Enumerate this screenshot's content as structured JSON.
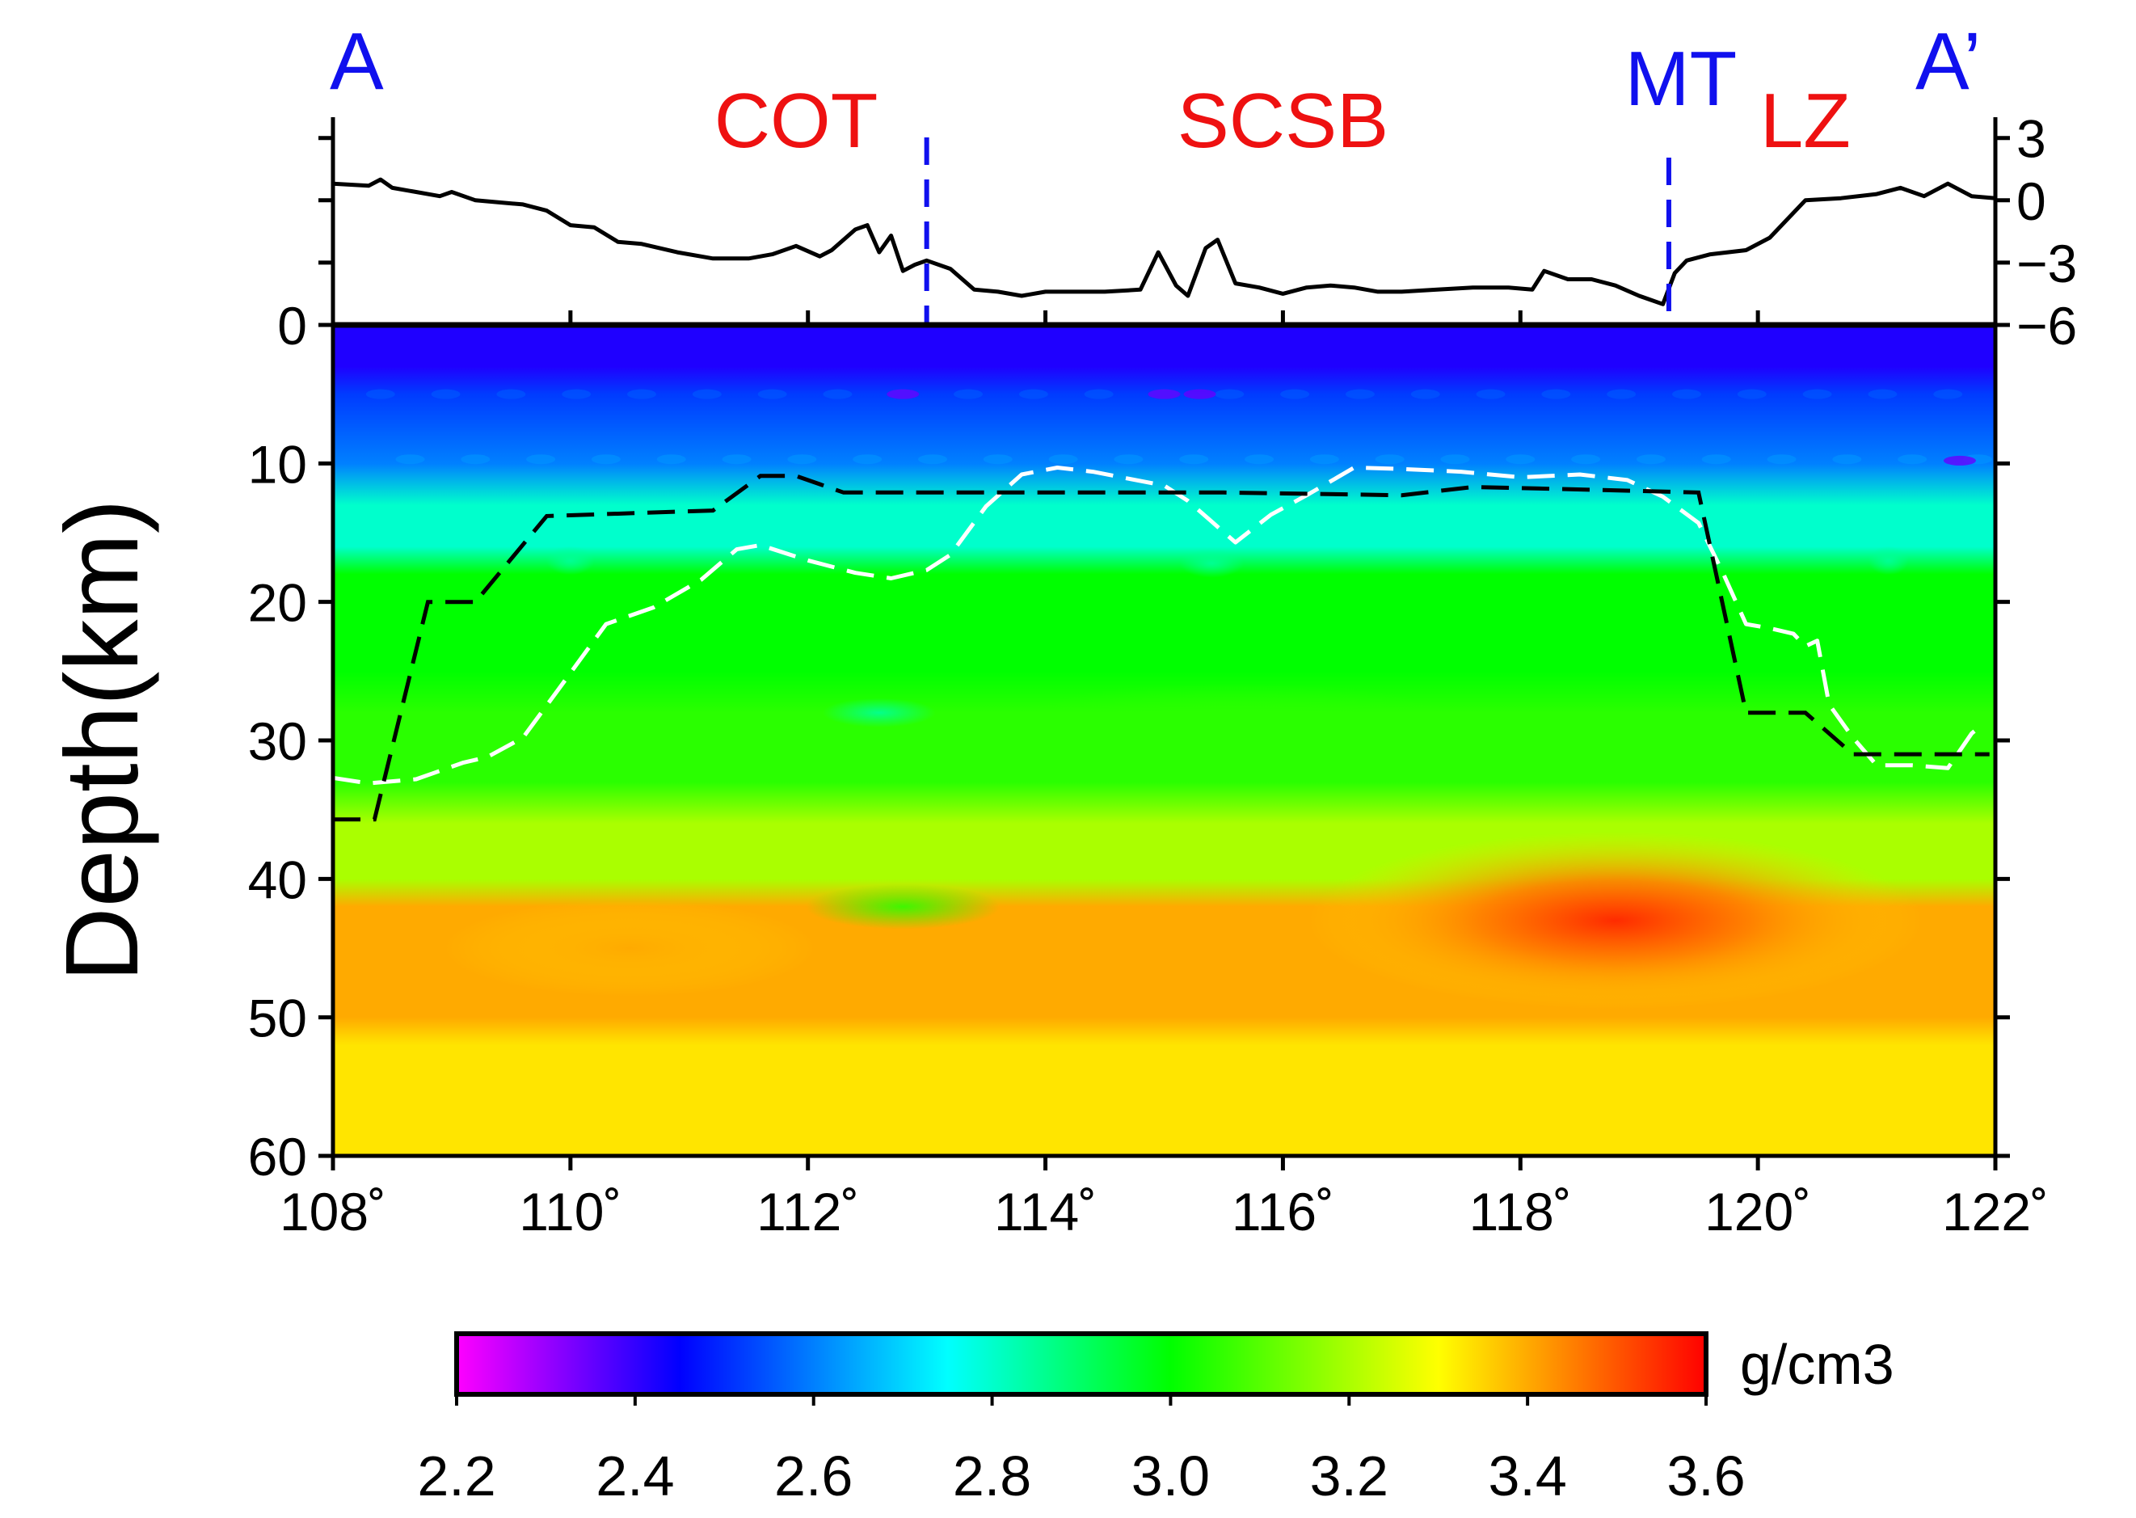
{
  "chart_data": {
    "type": "heatmap",
    "title": "",
    "profile": {
      "start_label": "A",
      "end_label": "A’"
    },
    "region_labels": [
      {
        "text": "COT",
        "lon": 111.9
      },
      {
        "text": "SCSB",
        "lon": 116.0
      },
      {
        "text": "LZ",
        "lon": 120.4
      }
    ],
    "boundary_markers": [
      {
        "text": "",
        "lon": 113.0
      },
      {
        "text": "MT",
        "lon": 119.25
      }
    ],
    "xaxis": {
      "range": [
        108,
        122
      ],
      "ticks": [
        108,
        110,
        112,
        114,
        116,
        118,
        120,
        122
      ],
      "tick_labels": [
        "108˚",
        "110˚",
        "112˚",
        "114˚",
        "116˚",
        "118˚",
        "120˚",
        "122˚"
      ]
    },
    "yaxis": {
      "label": "Depth(km)",
      "range": [
        0,
        60
      ],
      "ticks": [
        0,
        10,
        20,
        30,
        40,
        50,
        60
      ],
      "tick_labels": [
        "0",
        "10",
        "20",
        "30",
        "40",
        "50",
        "60"
      ]
    },
    "topo_axis": {
      "range": [
        -6,
        4
      ],
      "ticks": [
        -6,
        -3,
        0,
        3
      ],
      "tick_labels": [
        "−6",
        "−3",
        "0",
        "3"
      ]
    },
    "topography": {
      "lon": [
        108.0,
        108.3,
        108.4,
        108.5,
        108.7,
        108.9,
        109.0,
        109.2,
        109.4,
        109.6,
        109.8,
        110.0,
        110.2,
        110.4,
        110.6,
        110.9,
        111.2,
        111.5,
        111.7,
        111.9,
        112.1,
        112.2,
        112.4,
        112.5,
        112.6,
        112.7,
        112.8,
        112.9,
        113.0,
        113.2,
        113.4,
        113.6,
        113.8,
        114.0,
        114.2,
        114.5,
        114.8,
        114.95,
        115.1,
        115.2,
        115.35,
        115.45,
        115.6,
        115.8,
        116.0,
        116.2,
        116.4,
        116.6,
        116.8,
        117.0,
        117.3,
        117.6,
        117.9,
        118.1,
        118.2,
        118.4,
        118.6,
        118.8,
        119.0,
        119.2,
        119.3,
        119.4,
        119.6,
        119.9,
        120.1,
        120.4,
        120.7,
        121.0,
        121.2,
        121.4,
        121.5,
        121.6,
        121.8,
        122.0
      ],
      "elev": [
        0.8,
        0.7,
        1.0,
        0.6,
        0.4,
        0.2,
        0.4,
        0.0,
        -0.1,
        -0.2,
        -0.5,
        -1.2,
        -1.3,
        -2.0,
        -2.1,
        -2.5,
        -2.8,
        -2.8,
        -2.6,
        -2.2,
        -2.7,
        -2.4,
        -1.4,
        -1.2,
        -2.5,
        -1.7,
        -3.4,
        -3.1,
        -2.9,
        -3.3,
        -4.3,
        -4.4,
        -4.6,
        -4.4,
        -4.4,
        -4.4,
        -4.3,
        -2.5,
        -4.1,
        -4.6,
        -2.3,
        -1.9,
        -4.0,
        -4.2,
        -4.5,
        -4.2,
        -4.1,
        -4.2,
        -4.4,
        -4.4,
        -4.3,
        -4.2,
        -4.2,
        -4.3,
        -3.4,
        -3.8,
        -3.8,
        -4.1,
        -4.6,
        -5.0,
        -3.5,
        -2.9,
        -2.6,
        -2.4,
        -1.8,
        0.0,
        0.1,
        0.3,
        0.6,
        0.2,
        0.5,
        0.8,
        0.2,
        0.1
      ]
    },
    "moho_model": {
      "lon": [
        108.0,
        108.35,
        108.35,
        108.8,
        109.2,
        109.8,
        111.2,
        111.6,
        111.9,
        112.3,
        115.5,
        117.0,
        117.6,
        118.6,
        119.5,
        119.9,
        119.9,
        120.4,
        120.8,
        121.5,
        121.95
      ],
      "depth": [
        35.7,
        35.7,
        35.7,
        20.0,
        20.0,
        13.8,
        13.4,
        10.9,
        10.9,
        12.1,
        12.1,
        12.3,
        11.7,
        11.9,
        12.1,
        28.0,
        28.0,
        28.0,
        31.0,
        31.0,
        31.0
      ]
    },
    "moho_inversion": {
      "lon": [
        108.0,
        108.3,
        108.7,
        109.1,
        109.3,
        109.6,
        109.9,
        110.3,
        110.7,
        111.1,
        111.4,
        111.6,
        112.0,
        112.4,
        112.7,
        113.0,
        113.2,
        113.5,
        113.8,
        114.1,
        114.4,
        114.7,
        115.0,
        115.2,
        115.4,
        115.6,
        115.9,
        116.2,
        116.6,
        117.0,
        117.5,
        118.0,
        118.5,
        118.9,
        119.2,
        119.5,
        119.7,
        119.9,
        120.1,
        120.3,
        120.4,
        120.5,
        120.6,
        120.8,
        121.0,
        121.3,
        121.6,
        121.8,
        121.9
      ],
      "depth": [
        32.7,
        33.1,
        32.8,
        31.6,
        31.2,
        29.8,
        26.3,
        21.6,
        20.4,
        18.4,
        16.2,
        15.9,
        17.0,
        17.9,
        18.3,
        17.7,
        16.6,
        13.1,
        10.8,
        10.3,
        10.6,
        11.1,
        11.6,
        12.7,
        14.2,
        15.7,
        13.7,
        12.3,
        10.3,
        10.4,
        10.6,
        11.0,
        10.8,
        11.2,
        12.4,
        14.3,
        17.8,
        21.6,
        21.9,
        22.3,
        23.2,
        22.8,
        27.4,
        29.8,
        31.8,
        31.8,
        32.0,
        29.5,
        28.8
      ]
    },
    "density_field_g_cm3": {
      "layers": [
        {
          "depth_km": [
            0,
            3
          ],
          "value": 2.42
        },
        {
          "depth_km": [
            5,
            5
          ],
          "value": 2.52
        },
        {
          "depth_km": [
            10,
            10
          ],
          "value": 2.6
        },
        {
          "depth_km": [
            13,
            16
          ],
          "value": 2.8
        },
        {
          "depth_km": [
            18,
            25
          ],
          "value": 3.0
        },
        {
          "depth_km": [
            28,
            33
          ],
          "value": 3.05
        },
        {
          "depth_km": [
            36,
            40
          ],
          "value": 3.2
        },
        {
          "depth_km": [
            42,
            50
          ],
          "value": 3.4
        },
        {
          "depth_km": [
            52,
            60
          ],
          "value": 3.33
        }
      ],
      "maximum": {
        "lon": 118.8,
        "depth_km": 43,
        "value": 3.55
      }
    },
    "colorbar": {
      "label": "g/cm3",
      "range": [
        2.2,
        3.6
      ],
      "ticks": [
        2.2,
        2.4,
        2.6,
        2.8,
        3.0,
        3.2,
        3.4,
        3.6
      ],
      "tick_labels": [
        "2.2",
        "2.4",
        "2.6",
        "2.8",
        "3.0",
        "3.2",
        "3.4",
        "3.6"
      ],
      "stops": [
        {
          "value": 2.2,
          "color": "#ff00ff"
        },
        {
          "value": 2.45,
          "color": "#0000ff"
        },
        {
          "value": 2.75,
          "color": "#00ffff"
        },
        {
          "value": 3.0,
          "color": "#00ff00"
        },
        {
          "value": 3.3,
          "color": "#ffff00"
        },
        {
          "value": 3.6,
          "color": "#ff0000"
        }
      ]
    },
    "colors": {
      "profile_label": "#1010ee",
      "region_label": "#ee1111",
      "boundary_marker": "#1010ee",
      "moho_model": "#000000",
      "moho_inversion": "#ffffff",
      "axis": "#000000"
    }
  }
}
